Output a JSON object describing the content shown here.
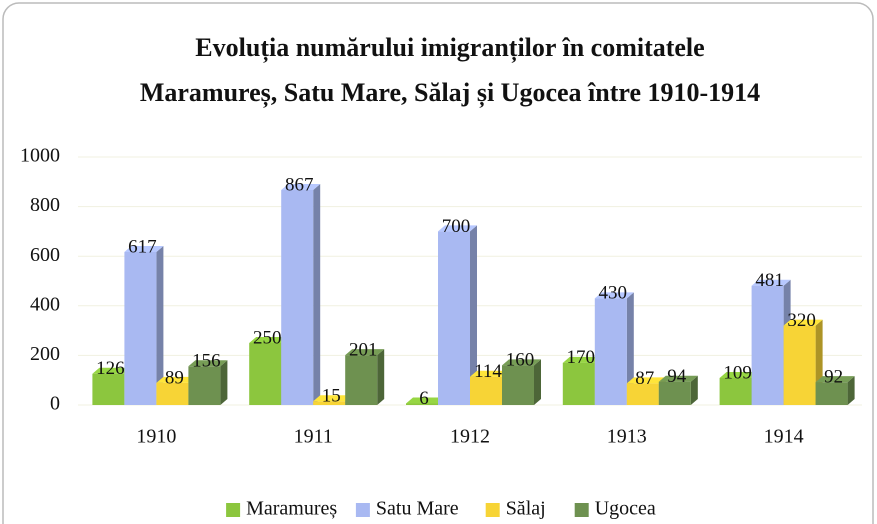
{
  "chart_data": {
    "type": "bar3d",
    "title": [
      "Evoluția numărului imigranților în comitatele",
      "Maramureș, Satu Mare, Sălaj și Ugocea între 1910-1914"
    ],
    "categories": [
      "1910",
      "1911",
      "1912",
      "1913",
      "1914"
    ],
    "series": [
      {
        "name": "Maramureș",
        "color": "#8cc63e",
        "values": [
          126,
          250,
          6,
          170,
          109
        ]
      },
      {
        "name": "Satu Mare",
        "color": "#a9b9f2",
        "values": [
          617,
          867,
          700,
          430,
          481
        ]
      },
      {
        "name": "Sălaj",
        "color": "#f7d436",
        "values": [
          89,
          15,
          114,
          87,
          320
        ]
      },
      {
        "name": "Ugocea",
        "color": "#6e9150",
        "values": [
          156,
          201,
          160,
          94,
          92
        ]
      }
    ],
    "ylim": [
      0,
      1000
    ],
    "yticks": [
      0,
      200,
      400,
      600,
      800,
      1000
    ],
    "grid": true,
    "legend": "bottom"
  }
}
